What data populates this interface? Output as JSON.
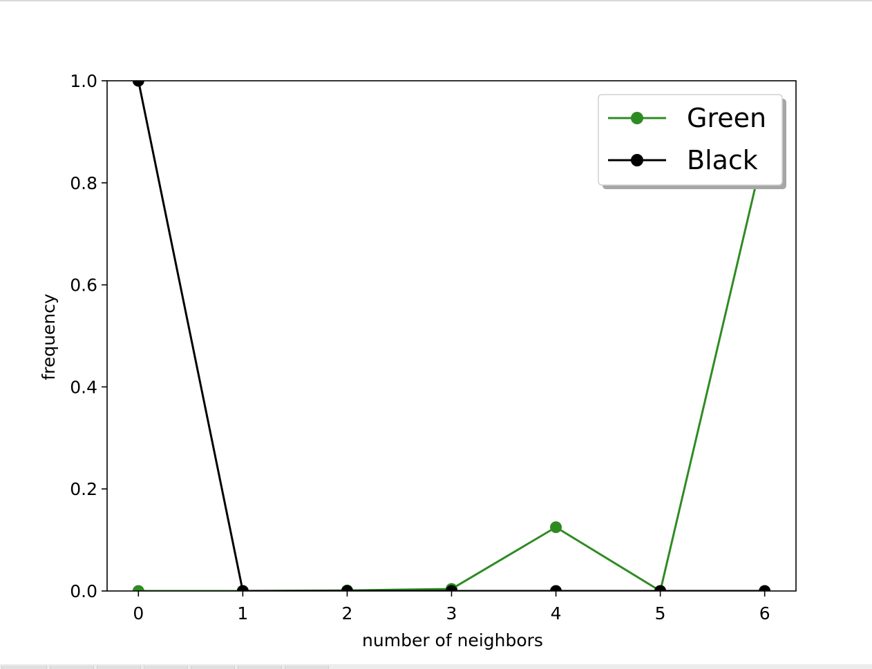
{
  "chart_data": {
    "type": "line",
    "title": "",
    "xlabel": "number of neighbors",
    "ylabel": "frequency",
    "x": [
      0,
      1,
      2,
      3,
      4,
      5,
      6
    ],
    "xlim": [
      -0.3,
      6.3
    ],
    "ylim": [
      0.0,
      1.0
    ],
    "xticks": [
      "0",
      "1",
      "2",
      "3",
      "4",
      "5",
      "6"
    ],
    "yticks": [
      "0.0",
      "0.2",
      "0.4",
      "0.6",
      "0.8",
      "1.0"
    ],
    "grid": false,
    "legend_position": "top-right",
    "series": [
      {
        "name": "Green",
        "color": "#2e8b22",
        "marker": "circle",
        "values": [
          0.0,
          0.0,
          0.001,
          0.004,
          0.125,
          0.0,
          0.87
        ]
      },
      {
        "name": "Black",
        "color": "#000000",
        "marker": "circle",
        "values": [
          1.0,
          0.0,
          0.0,
          0.0,
          0.0,
          0.0,
          0.0
        ]
      }
    ]
  }
}
